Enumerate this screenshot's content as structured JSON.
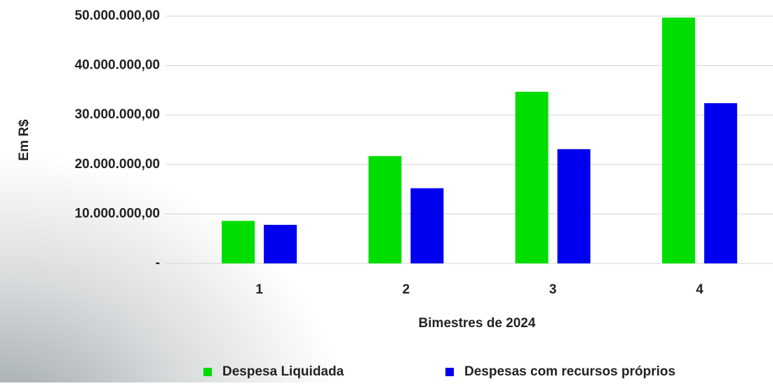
{
  "chart_data": {
    "type": "bar",
    "categories": [
      "1",
      "2",
      "3",
      "4"
    ],
    "series": [
      {
        "name": "Despesa Liquidada",
        "color": "#00dd00",
        "values": [
          8600000,
          21700000,
          34700000,
          49700000
        ]
      },
      {
        "name": "Despesas com recursos próprios",
        "color": "#0000ee",
        "values": [
          7800000,
          15200000,
          23100000,
          32400000
        ]
      }
    ],
    "ylim": [
      0,
      50000000
    ],
    "yticks": [
      {
        "value": 0,
        "label": "-"
      },
      {
        "value": 10000000,
        "label": "10.000.000,00"
      },
      {
        "value": 20000000,
        "label": "20.000.000,00"
      },
      {
        "value": 30000000,
        "label": "30.000.000,00"
      },
      {
        "value": 40000000,
        "label": "40.000.000,00"
      },
      {
        "value": 50000000,
        "label": "50.000.000,00"
      }
    ],
    "xlabel": "Bimestres de 2024",
    "ylabel": "Em R$",
    "grid": true,
    "legend": "bottom"
  }
}
